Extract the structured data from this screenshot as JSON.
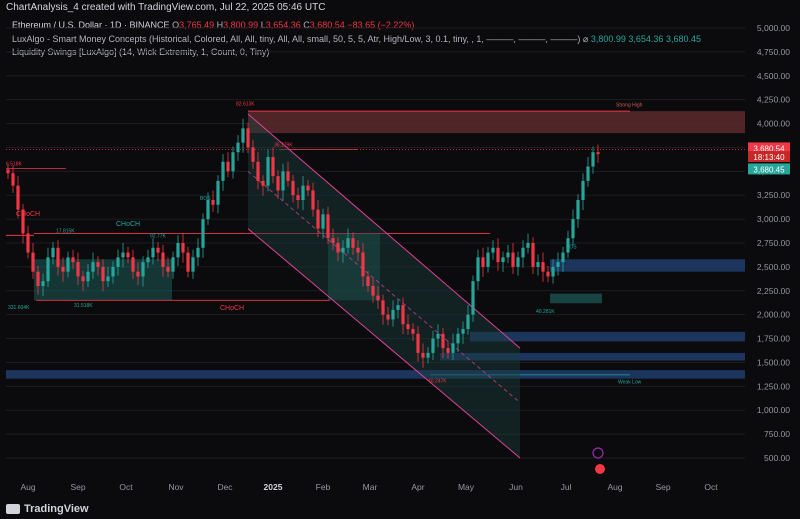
{
  "header": {
    "title_line": "ChartAnalysis_4 created with TradingView.com, Jul 22, 2025 05:46 UTC",
    "symbol": "Ethereum / U.S. Dollar · 1D · BINANCE",
    "o_label": "O",
    "o_value": "3,765.49",
    "h_label": "H",
    "h_value": "3,800.99",
    "l_label": "L",
    "l_value": "3,654.36",
    "c_label": "C",
    "c_value": "3,680.54",
    "change": "−83.65 (−2.22%)",
    "indicator1": "LuxAlgo - Smart Money Concepts (Historical, Colored, All, All, tiny, All, All, small, 50, 5, 5, Atr, High/Low, 3, 0.1, tiny, , 1, ———, ———, ———)",
    "indicator1_values": [
      "3,800.99",
      "3,654.36",
      "3,680.45"
    ],
    "indicator2": "Liquidity Swings [LuxAlgo] (14, Wick Extremity, 1, Count, 0, Tiny)"
  },
  "price_badges": {
    "red_price": "3,680.54",
    "red_timer": "18:13:40",
    "green_price": "3,680.45"
  },
  "footer": {
    "brand": "TradingView"
  },
  "colors": {
    "background": "#0b0b0d",
    "up": "#26a69a",
    "down": "#f23645",
    "channel": "#e0409a",
    "zone_red": "#5c2a2e",
    "zone_blue": "#1e3a66"
  },
  "chart_data": {
    "type": "candlestick",
    "y_axis": {
      "min": 500,
      "max": 5000,
      "ticks": [
        "5,000.00",
        "4,750.00",
        "4,500.00",
        "4,250.00",
        "4,000.00",
        "3,750.00",
        "3,500.00",
        "3,250.00",
        "3,000.00",
        "2,750.00",
        "2,500.00",
        "2,250.00",
        "2,000.00",
        "1,750.00",
        "1,500.00",
        "1,250.00",
        "1,000.00",
        "750.00",
        "500.00"
      ],
      "tick_values": [
        5000,
        4750,
        4500,
        4250,
        4000,
        3750,
        3500,
        3250,
        3000,
        2750,
        2500,
        2250,
        2000,
        1750,
        1500,
        1250,
        1000,
        750,
        500
      ]
    },
    "x_axis": {
      "labels": [
        "Aug",
        "Sep",
        "Oct",
        "Nov",
        "Dec",
        "2025",
        "Feb",
        "Mar",
        "Apr",
        "May",
        "Jun",
        "Jul",
        "Aug",
        "Sep",
        "Oct"
      ],
      "month_index": [
        0,
        1,
        2,
        3,
        4,
        5,
        6,
        7,
        8,
        9,
        10,
        11,
        12,
        13,
        14
      ]
    },
    "series_close": [
      3480,
      3350,
      3100,
      2850,
      2650,
      2450,
      2300,
      2350,
      2600,
      2700,
      2500,
      2450,
      2600,
      2550,
      2400,
      2350,
      2450,
      2550,
      2500,
      2350,
      2400,
      2500,
      2600,
      2650,
      2600,
      2450,
      2400,
      2550,
      2600,
      2700,
      2650,
      2500,
      2450,
      2600,
      2750,
      2650,
      2450,
      2600,
      2700,
      3000,
      3200,
      3150,
      3400,
      3600,
      3500,
      3700,
      3800,
      3950,
      3750,
      3600,
      3400,
      3350,
      3650,
      3450,
      3300,
      3500,
      3400,
      3250,
      3200,
      3350,
      3300,
      3100,
      2900,
      3050,
      2800,
      2750,
      2650,
      2700,
      2800,
      2700,
      2650,
      2400,
      2300,
      2200,
      2150,
      2000,
      1950,
      2050,
      2100,
      1900,
      1850,
      1800,
      1600,
      1550,
      1600,
      1750,
      1800,
      1650,
      1600,
      1700,
      1800,
      1850,
      2000,
      2350,
      2600,
      2500,
      2650,
      2700,
      2550,
      2600,
      2650,
      2500,
      2600,
      2700,
      2750,
      2500,
      2550,
      2450,
      2400,
      2500,
      2550,
      2650,
      2800,
      3000,
      3200,
      3400,
      3550,
      3700,
      3680
    ],
    "labels_text": {
      "strong_high": "Strong High",
      "weak_low": "Weak Low",
      "choch": "CHoCH",
      "bos": "BOS",
      "level_hi": "82.613K",
      "level_a": "6.518K",
      "level_b": "17.815K",
      "level_c": "36.279K",
      "level_d": "92.77K",
      "level_e": "331.604K",
      "level_f": "31.518K",
      "level_g": "40.281K",
      "level_h": "40.247K"
    }
  }
}
